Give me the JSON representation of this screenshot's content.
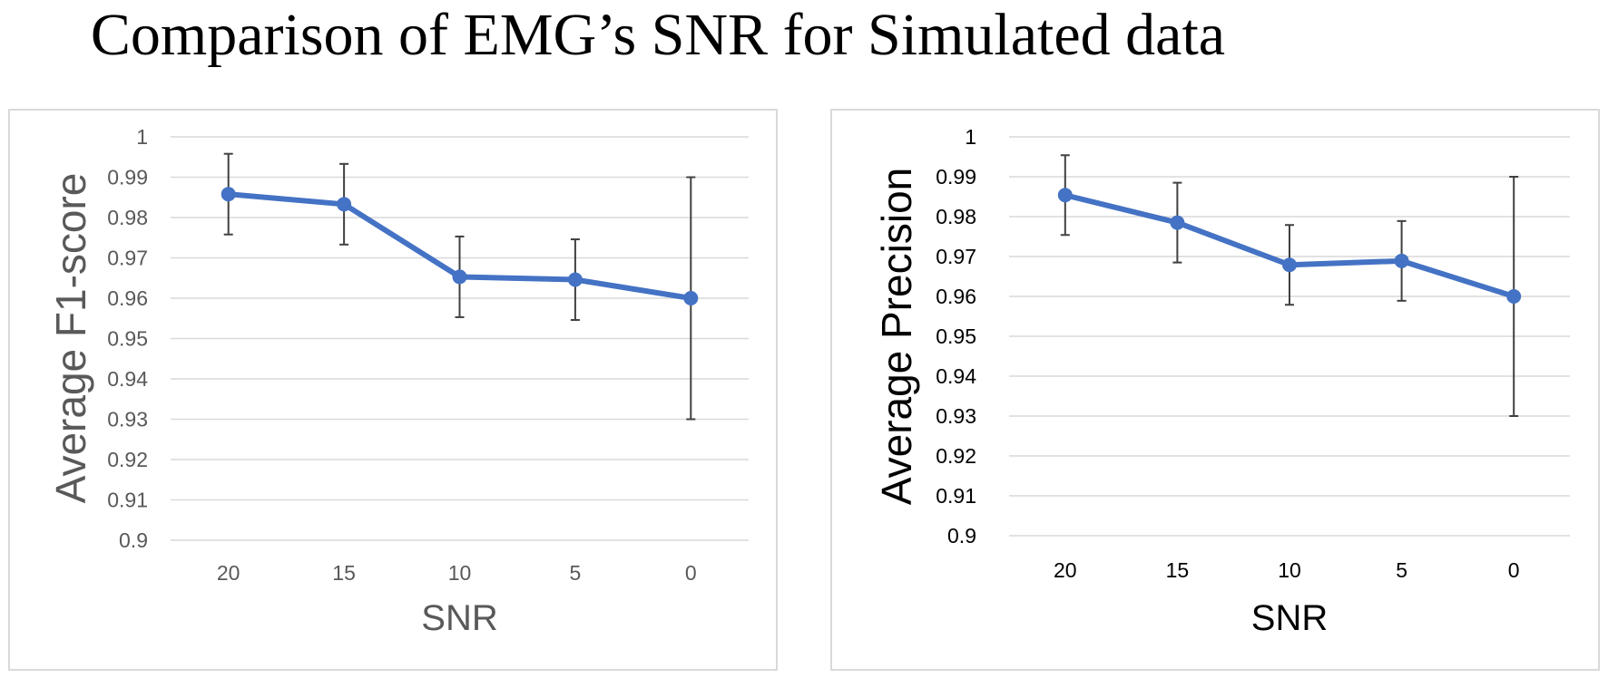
{
  "title": "Comparison of EMG’s SNR for Simulated data",
  "colors": {
    "series": "#4472c4",
    "error_bar": "#404040",
    "grid": "#d9d9d9"
  },
  "chart_data": [
    {
      "type": "line",
      "title": "",
      "xlabel": "SNR",
      "ylabel": "Average F1-score",
      "categories": [
        "20",
        "15",
        "10",
        "5",
        "0"
      ],
      "values": [
        0.9858,
        0.9833,
        0.9653,
        0.9646,
        0.96
      ],
      "error_plus": [
        0.01,
        0.01,
        0.01,
        0.01,
        0.03
      ],
      "error_minus": [
        0.01,
        0.01,
        0.01,
        0.01,
        0.03
      ],
      "ylim": [
        0.9,
        1
      ],
      "yticks": [
        0.9,
        0.91,
        0.92,
        0.93,
        0.94,
        0.95,
        0.96,
        0.97,
        0.98,
        0.99,
        1
      ],
      "ytick_labels": [
        "0.9",
        "0.91",
        "0.92",
        "0.93",
        "0.94",
        "0.95",
        "0.96",
        "0.97",
        "0.98",
        "0.99",
        "1"
      ],
      "grid": true
    },
    {
      "type": "line",
      "title": "",
      "xlabel": "SNR",
      "ylabel": "Average Precision",
      "categories": [
        "20",
        "15",
        "10",
        "5",
        "0"
      ],
      "values": [
        0.9854,
        0.9785,
        0.9679,
        0.9689,
        0.96
      ],
      "error_plus": [
        0.01,
        0.01,
        0.01,
        0.01,
        0.03
      ],
      "error_minus": [
        0.01,
        0.01,
        0.01,
        0.01,
        0.03
      ],
      "ylim": [
        0.9,
        1
      ],
      "yticks": [
        0.9,
        0.91,
        0.92,
        0.93,
        0.94,
        0.95,
        0.96,
        0.97,
        0.98,
        0.99,
        1
      ],
      "ytick_labels": [
        "0.9",
        "0.91",
        "0.92",
        "0.93",
        "0.94",
        "0.95",
        "0.96",
        "0.97",
        "0.98",
        "0.99",
        "1"
      ],
      "grid": true
    }
  ]
}
